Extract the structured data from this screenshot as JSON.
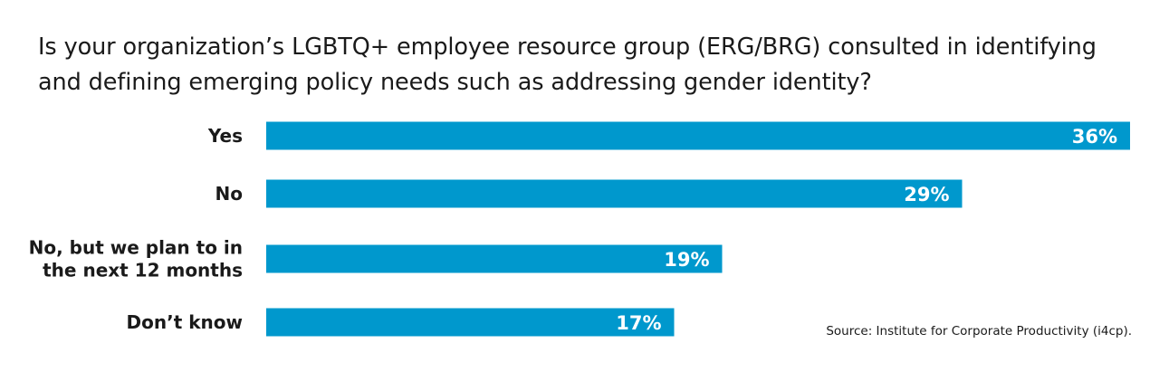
{
  "chart_data": {
    "type": "bar",
    "orientation": "horizontal",
    "title": "Is your organization’s LGBTQ+ employee resource group (ERG/BRG) consulted in identifying and defining emerging policy needs such as addressing gender identity?",
    "categories": [
      "Yes",
      "No",
      "No, but we plan to in the next 12 months",
      "Don’t know"
    ],
    "category_lines": [
      [
        "Yes"
      ],
      [
        "No"
      ],
      [
        "No, but we plan to in",
        "the next 12 months"
      ],
      [
        "Don’t know"
      ]
    ],
    "values": [
      36,
      29,
      19,
      17
    ],
    "value_labels": [
      "36%",
      "29%",
      "19%",
      "17%"
    ],
    "unit": "%",
    "xlim": [
      0,
      36
    ],
    "grid": false,
    "legend": "none",
    "bar_color": "#0098cd",
    "label_color": "#ffffff",
    "source": "Source: Institute for Corporate Productivity (i4cp)."
  }
}
